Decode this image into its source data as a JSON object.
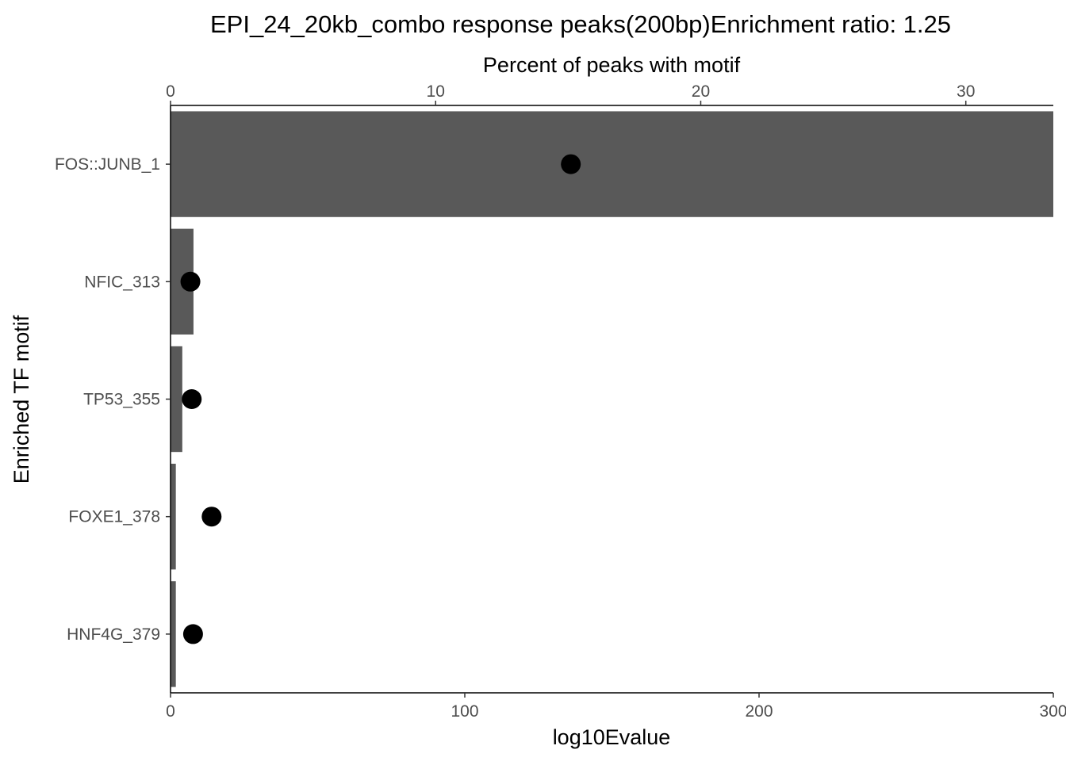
{
  "chart_data": {
    "type": "bar",
    "title": "EPI_24_20kb_combo response peaks(200bp)Enrichment ratio: 1.25",
    "ylabel": "Enriched TF motif",
    "categories": [
      "FOS::JUNB_1",
      "NFIC_313",
      "TP53_355",
      "FOXE1_378",
      "HNF4G_379"
    ],
    "bottom_axis": {
      "label": "log10Evalue",
      "range": [
        0,
        300
      ],
      "ticks": [
        0,
        100,
        200,
        300
      ],
      "tick_labels": [
        "0",
        "100",
        "200",
        "300"
      ]
    },
    "top_axis": {
      "label": "Percent of peaks with motif",
      "range": [
        0,
        33.3
      ],
      "ticks": [
        0,
        10,
        20,
        30
      ],
      "tick_labels": [
        "0",
        "10",
        "20",
        "30"
      ]
    },
    "series": [
      {
        "name": "log10Evalue",
        "mark": "bar",
        "color": "#595959",
        "values": [
          300,
          7.8,
          4.0,
          1.8,
          1.8
        ]
      },
      {
        "name": "Percent of peaks with motif",
        "mark": "point",
        "color": "#000000",
        "values": [
          15.1,
          0.75,
          0.8,
          1.55,
          0.85
        ]
      }
    ]
  }
}
